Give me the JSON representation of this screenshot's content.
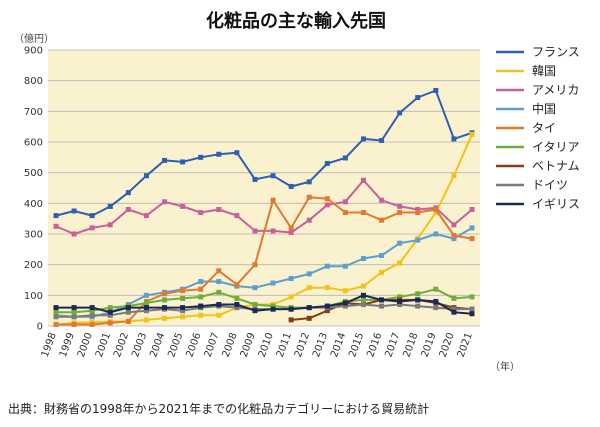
{
  "chart_data": {
    "type": "line",
    "title": "化粧品の主な輸入先国",
    "ylabel": "（億円）",
    "xlabel": "（年）",
    "ylim": [
      0,
      900
    ],
    "yticks": [
      0,
      100,
      200,
      300,
      400,
      500,
      600,
      700,
      800,
      900
    ],
    "grid": true,
    "legend": "right",
    "categories": [
      "1998",
      "1999",
      "2000",
      "2001",
      "2002",
      "2003",
      "2004",
      "2005",
      "2006",
      "2007",
      "2008",
      "2009",
      "2010",
      "2011",
      "2012",
      "2013",
      "2014",
      "2015",
      "2016",
      "2017",
      "2018",
      "2019",
      "2020",
      "2021"
    ],
    "series": [
      {
        "name": "フランス",
        "color": "#2f5fb0",
        "values": [
          360,
          375,
          360,
          390,
          435,
          490,
          540,
          535,
          550,
          560,
          565,
          478,
          490,
          455,
          470,
          530,
          548,
          610,
          605,
          695,
          745,
          768,
          610,
          630
        ]
      },
      {
        "name": "韓国",
        "color": "#f2c318",
        "values": [
          5,
          10,
          12,
          14,
          15,
          20,
          25,
          30,
          35,
          35,
          60,
          70,
          70,
          95,
          125,
          125,
          115,
          130,
          175,
          205,
          285,
          370,
          490,
          625
        ]
      },
      {
        "name": "アメリカ",
        "color": "#c8609a",
        "values": [
          325,
          300,
          320,
          330,
          380,
          360,
          405,
          390,
          370,
          380,
          360,
          310,
          310,
          305,
          345,
          395,
          405,
          475,
          410,
          390,
          380,
          385,
          330,
          380
        ]
      },
      {
        "name": "中国",
        "color": "#5c9fd0",
        "values": [
          35,
          30,
          30,
          45,
          70,
          100,
          110,
          120,
          145,
          145,
          130,
          125,
          140,
          155,
          170,
          195,
          195,
          220,
          230,
          270,
          280,
          300,
          285,
          320
        ]
      },
      {
        "name": "タイ",
        "color": "#e07a30",
        "values": [
          5,
          5,
          5,
          10,
          15,
          80,
          105,
          115,
          120,
          180,
          135,
          200,
          410,
          320,
          420,
          415,
          370,
          370,
          345,
          370,
          370,
          380,
          295,
          285
        ]
      },
      {
        "name": "イタリア",
        "color": "#6fae3c",
        "values": [
          45,
          45,
          50,
          60,
          65,
          75,
          85,
          90,
          95,
          110,
          90,
          70,
          65,
          60,
          60,
          65,
          80,
          85,
          85,
          95,
          105,
          120,
          90,
          95
        ]
      },
      {
        "name": "ベトナム",
        "color": "#8b3a17",
        "values": [
          null,
          null,
          null,
          null,
          null,
          null,
          null,
          null,
          null,
          null,
          null,
          null,
          null,
          20,
          25,
          50,
          75,
          70,
          85,
          85,
          85,
          75,
          60,
          55
        ]
      },
      {
        "name": "ドイツ",
        "color": "#7a7a7a",
        "values": [
          30,
          30,
          35,
          35,
          45,
          50,
          55,
          50,
          60,
          65,
          60,
          55,
          55,
          55,
          60,
          60,
          65,
          70,
          65,
          70,
          65,
          60,
          55,
          55
        ]
      },
      {
        "name": "イギリス",
        "color": "#1a2a55",
        "values": [
          60,
          60,
          60,
          45,
          60,
          60,
          60,
          60,
          65,
          70,
          70,
          50,
          55,
          55,
          60,
          65,
          75,
          100,
          85,
          80,
          85,
          80,
          45,
          40
        ]
      }
    ]
  },
  "source_note": "出典：財務省の1998年から2021年までの化粧品カテゴリーにおける貿易統計"
}
